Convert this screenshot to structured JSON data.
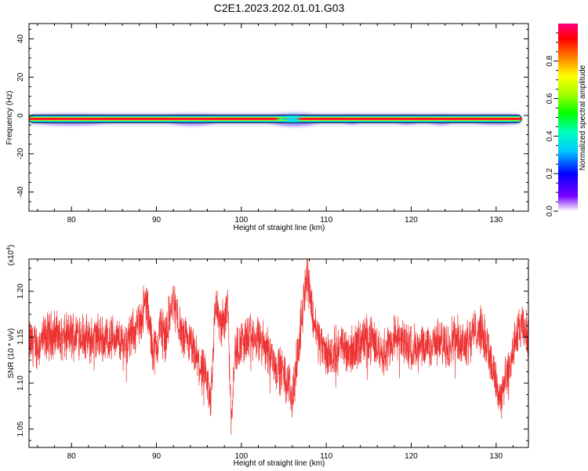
{
  "figure": {
    "title": "C2E1.2023.202.01.01.G03"
  },
  "chart_data": [
    {
      "type": "heatmap",
      "name": "spectrogram",
      "xlabel": "Height of straight line (km)",
      "ylabel": "Frequency (Hz)",
      "xlim": [
        75,
        133.8
      ],
      "ylim": [
        -50,
        48
      ],
      "x_ticks": [
        80,
        90,
        100,
        110,
        120,
        130
      ],
      "x_tick_labels": [
        "80",
        "90",
        "100",
        "110",
        "120",
        "130"
      ],
      "y_ticks": [
        -40,
        -20,
        0,
        20,
        40
      ],
      "y_tick_labels": [
        "-40",
        "-20",
        "0",
        "20",
        "40"
      ],
      "line_frequency_hz": -1.8,
      "line_extent_km": [
        75,
        133
      ],
      "colorbar": {
        "label": "Normalized spectral amplitude",
        "range": [
          0,
          1
        ],
        "ticks": [
          0.0,
          0.2,
          0.4,
          0.6,
          0.8
        ],
        "tick_labels": [
          "0.0",
          "0.2",
          "0.4",
          "0.6",
          "0.8"
        ],
        "colors": [
          "#ffffff",
          "#7800ff",
          "#0000ff",
          "#00c8ff",
          "#00ffc0",
          "#00ff00",
          "#a0ff00",
          "#ffff00",
          "#ff8000",
          "#ff0000",
          "#ff0080"
        ]
      },
      "spread_regions": [
        {
          "x": [
            75,
            85
          ],
          "amplitude": 0.45
        },
        {
          "x": [
            91,
            97.5
          ],
          "amplitude": 0.5
        },
        {
          "x": [
            103,
            109.5
          ],
          "amplitude": 0.65
        },
        {
          "x": [
            112,
            114
          ],
          "amplitude": 0.3
        },
        {
          "x": [
            118,
            121
          ],
          "amplitude": 0.3
        },
        {
          "x": [
            122,
            125
          ],
          "amplitude": 0.4
        },
        {
          "x": [
            127,
            133
          ],
          "amplitude": 0.35
        }
      ]
    },
    {
      "type": "line",
      "name": "snr",
      "xlabel": "Height of straight line (km)",
      "ylabel": "SNR (10 * v/v)",
      "y_multiplier": "(x10",
      "y_multiplier_exp": "4",
      "y_multiplier_close": ")",
      "xlim": [
        75,
        133.8
      ],
      "ylim": [
        1.03,
        1.235
      ],
      "x_ticks": [
        80,
        90,
        100,
        110,
        120,
        130
      ],
      "x_tick_labels": [
        "80",
        "90",
        "100",
        "110",
        "120",
        "130"
      ],
      "y_ticks": [
        1.05,
        1.1,
        1.15,
        1.2
      ],
      "y_tick_labels": [
        "1.05",
        "1.10",
        "1.15",
        "1.20"
      ],
      "color": "#ee3333",
      "series": [
        {
          "x": [
            75,
            76,
            77,
            78,
            79,
            80,
            81,
            82,
            83,
            84,
            85,
            86,
            87,
            88,
            88.8,
            89.5,
            90,
            90.5,
            91,
            91.5,
            92,
            93,
            94,
            95,
            95.5,
            96,
            96.3,
            96.7,
            97,
            97.5,
            98,
            98.4,
            98.8,
            99.2,
            100,
            101,
            102,
            103,
            104,
            105,
            105.5,
            106,
            106.5,
            107,
            107.4,
            107.8,
            108.3,
            109,
            110,
            111,
            112,
            113,
            114,
            115,
            116,
            117,
            118,
            119,
            120,
            121,
            122,
            123,
            124,
            125,
            126,
            127,
            128,
            129,
            129.5,
            130,
            130.3,
            130.8,
            131.5,
            132,
            132.5,
            133,
            133.8
          ],
          "y": [
            1.145,
            1.14,
            1.15,
            1.155,
            1.148,
            1.152,
            1.155,
            1.145,
            1.15,
            1.148,
            1.15,
            1.142,
            1.15,
            1.165,
            1.19,
            1.14,
            1.135,
            1.165,
            1.15,
            1.17,
            1.19,
            1.15,
            1.14,
            1.12,
            1.11,
            1.1,
            1.08,
            1.14,
            1.19,
            1.16,
            1.17,
            1.19,
            1.06,
            1.13,
            1.145,
            1.15,
            1.145,
            1.14,
            1.12,
            1.11,
            1.1,
            1.085,
            1.12,
            1.16,
            1.2,
            1.22,
            1.18,
            1.15,
            1.13,
            1.135,
            1.14,
            1.135,
            1.145,
            1.15,
            1.14,
            1.135,
            1.15,
            1.145,
            1.14,
            1.135,
            1.14,
            1.145,
            1.14,
            1.15,
            1.145,
            1.15,
            1.16,
            1.14,
            1.12,
            1.1,
            1.085,
            1.095,
            1.11,
            1.14,
            1.15,
            1.16,
            1.15
          ]
        }
      ]
    }
  ]
}
